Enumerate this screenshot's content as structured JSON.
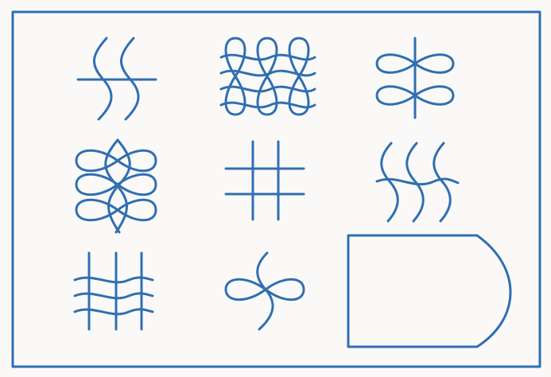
{
  "puzzle": {
    "ink_color": "#2f6fb2",
    "background_color": "#fbf9f8",
    "grid": {
      "rows": 3,
      "columns": 3
    },
    "cells": [
      {
        "row": 1,
        "column": 1,
        "figure": "two-wavy-vertical-one-horizontal"
      },
      {
        "row": 1,
        "column": 2,
        "figure": "interlaced-loops-four-wavy-horizontal"
      },
      {
        "row": 1,
        "column": 3,
        "figure": "horizontal-figure-eight-two-loops-vertical-line"
      },
      {
        "row": 2,
        "column": 1,
        "figure": "two-stacked-horizontal-figure-eights-wavy-vertical"
      },
      {
        "row": 2,
        "column": 2,
        "figure": "two-vertical-two-horizontal-straight-lines"
      },
      {
        "row": 2,
        "column": 3,
        "figure": "three-wavy-vertical-one-wavy-horizontal"
      },
      {
        "row": 3,
        "column": 1,
        "figure": "three-vertical-three-wavy-horizontal"
      },
      {
        "row": 3,
        "column": 2,
        "figure": "figure-eight-horizontal-loops-wavy-stroke"
      },
      {
        "row": 3,
        "column": 3,
        "figure": "answer-shape-blank"
      }
    ]
  }
}
